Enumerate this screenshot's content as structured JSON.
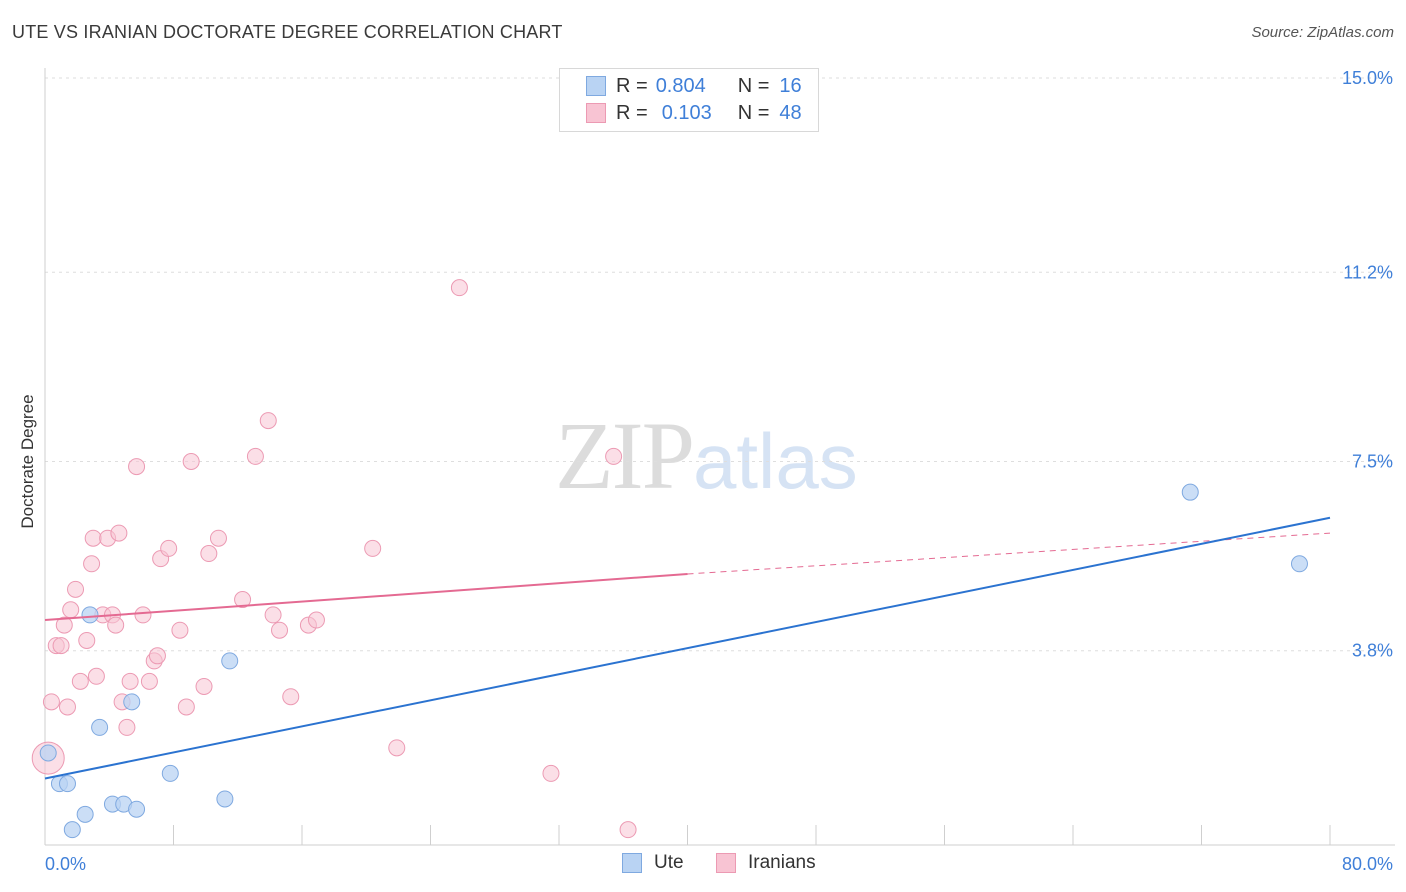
{
  "title": "UTE VS IRANIAN DOCTORATE DEGREE CORRELATION CHART",
  "source": "Source: ZipAtlas.com",
  "watermark": {
    "zip": "ZIP",
    "atlas": "atlas"
  },
  "legend": {
    "rows": [
      {
        "r_label": "R =",
        "r_value": "0.804",
        "n_label": "N =",
        "n_value": "16"
      },
      {
        "r_label": "R =",
        "r_value": "0.103",
        "n_label": "N =",
        "n_value": "48"
      }
    ]
  },
  "bottom_legend": {
    "ute": "Ute",
    "iranians": "Iranians"
  },
  "colors": {
    "ute_fill": "#b9d3f3",
    "ute_stroke": "#7fa9e0",
    "ute_line": "#2b73d0",
    "iran_fill": "#f8c4d3",
    "iran_stroke": "#ec9ab3",
    "iran_line": "#e46a92",
    "tick_label": "#3f7fd8"
  },
  "chart_data": {
    "type": "scatter",
    "title": "UTE VS IRANIAN DOCTORATE DEGREE CORRELATION CHART",
    "xlabel": "",
    "ylabel": "Doctorate Degree",
    "xlim": [
      0,
      80
    ],
    "ylim": [
      0,
      15
    ],
    "x_tick_labels": {
      "min": "0.0%",
      "max": "80.0%"
    },
    "y_ticks": [
      {
        "value": 3.8,
        "label": "3.8%"
      },
      {
        "value": 7.5,
        "label": "7.5%"
      },
      {
        "value": 11.2,
        "label": "11.2%"
      },
      {
        "value": 15.0,
        "label": "15.0%"
      }
    ],
    "series": [
      {
        "name": "Ute",
        "r": 0.804,
        "n": 16,
        "points": [
          [
            0.2,
            1.8
          ],
          [
            0.9,
            1.2
          ],
          [
            1.4,
            1.2
          ],
          [
            1.7,
            0.3
          ],
          [
            2.5,
            0.6
          ],
          [
            2.8,
            4.5
          ],
          [
            3.4,
            2.3
          ],
          [
            4.2,
            0.8
          ],
          [
            4.9,
            0.8
          ],
          [
            5.4,
            2.8
          ],
          [
            5.7,
            0.7
          ],
          [
            7.8,
            1.4
          ],
          [
            11.2,
            0.9
          ],
          [
            11.5,
            3.6
          ],
          [
            71.3,
            6.9
          ],
          [
            78.1,
            5.5
          ]
        ],
        "trend": {
          "x0": 0,
          "y0": 1.3,
          "x1": 80,
          "y1": 6.4
        }
      },
      {
        "name": "Iranians",
        "r": 0.103,
        "n": 48,
        "points": [
          [
            0.2,
            1.7
          ],
          [
            0.4,
            2.8
          ],
          [
            0.7,
            3.9
          ],
          [
            1.0,
            3.9
          ],
          [
            1.2,
            4.3
          ],
          [
            1.4,
            2.7
          ],
          [
            1.6,
            4.6
          ],
          [
            1.9,
            5.0
          ],
          [
            2.2,
            3.2
          ],
          [
            2.6,
            4.0
          ],
          [
            2.9,
            5.5
          ],
          [
            3.0,
            6.0
          ],
          [
            3.2,
            3.3
          ],
          [
            3.6,
            4.5
          ],
          [
            3.9,
            6.0
          ],
          [
            4.2,
            4.5
          ],
          [
            4.4,
            4.3
          ],
          [
            4.6,
            6.1
          ],
          [
            4.8,
            2.8
          ],
          [
            5.1,
            2.3
          ],
          [
            5.3,
            3.2
          ],
          [
            5.7,
            7.4
          ],
          [
            6.1,
            4.5
          ],
          [
            6.5,
            3.2
          ],
          [
            6.8,
            3.6
          ],
          [
            7.0,
            3.7
          ],
          [
            7.2,
            5.6
          ],
          [
            7.7,
            5.8
          ],
          [
            8.4,
            4.2
          ],
          [
            8.8,
            2.7
          ],
          [
            9.1,
            7.5
          ],
          [
            9.9,
            3.1
          ],
          [
            10.2,
            5.7
          ],
          [
            10.8,
            6.0
          ],
          [
            12.3,
            4.8
          ],
          [
            13.1,
            7.6
          ],
          [
            13.9,
            8.3
          ],
          [
            14.2,
            4.5
          ],
          [
            14.6,
            4.2
          ],
          [
            15.3,
            2.9
          ],
          [
            16.4,
            4.3
          ],
          [
            16.9,
            4.4
          ],
          [
            20.4,
            5.8
          ],
          [
            21.9,
            1.9
          ],
          [
            25.8,
            10.9
          ],
          [
            31.5,
            1.4
          ],
          [
            35.4,
            7.6
          ],
          [
            36.3,
            0.3
          ]
        ],
        "trend": {
          "x0": 0,
          "y0": 4.4,
          "x1": 40,
          "y1": 5.3,
          "dashed_to_x": 80,
          "dashed_to_y": 6.1
        }
      }
    ]
  }
}
